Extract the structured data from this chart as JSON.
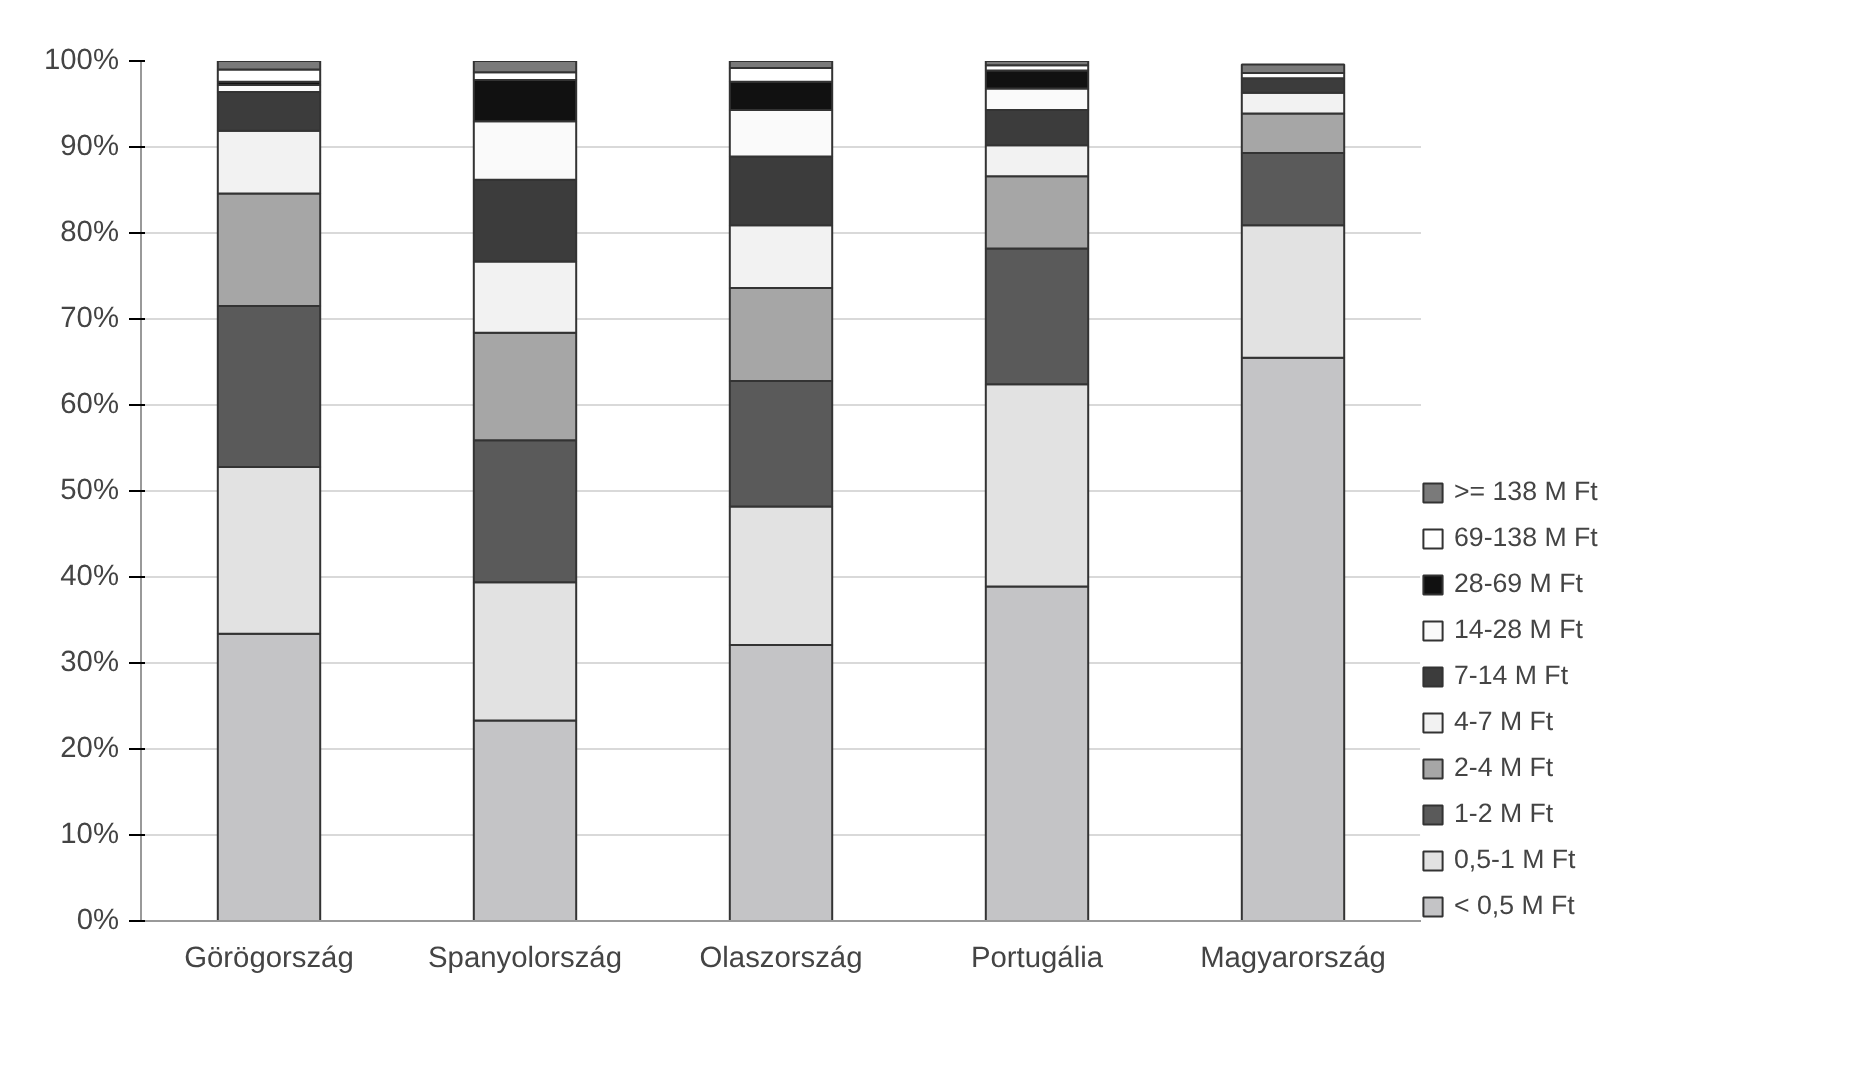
{
  "chart_data": {
    "type": "bar",
    "stacked": true,
    "categories": [
      "Görögország",
      "Spanyolország",
      "Olaszország",
      "Portugália",
      "Magyarország"
    ],
    "ylim": [
      0,
      100
    ],
    "yticks": [
      {
        "value": 0,
        "label": "0%"
      },
      {
        "value": 10,
        "label": "10%"
      },
      {
        "value": 20,
        "label": "20%"
      },
      {
        "value": 30,
        "label": "30%"
      },
      {
        "value": 40,
        "label": "40%"
      },
      {
        "value": 50,
        "label": "50%"
      },
      {
        "value": 60,
        "label": "60%"
      },
      {
        "value": 70,
        "label": "70%"
      },
      {
        "value": 80,
        "label": "80%"
      },
      {
        "value": 90,
        "label": "90%"
      },
      {
        "value": 100,
        "label": "100%"
      }
    ],
    "grid": "y",
    "legend": "right",
    "series": [
      {
        "name": "< 0,5 M Ft",
        "color": "#c4c4c6",
        "values": [
          33.4,
          23.3,
          32.1,
          38.9,
          65.5
        ]
      },
      {
        "name": "0,5-1 M Ft",
        "color": "#e2e2e2",
        "values": [
          19.4,
          16.1,
          16.1,
          23.5,
          15.4
        ]
      },
      {
        "name": "1-2 M Ft",
        "color": "#5a5a5a",
        "values": [
          18.7,
          16.5,
          14.6,
          15.8,
          8.4
        ]
      },
      {
        "name": "2-4 M Ft",
        "color": "#a6a6a6",
        "values": [
          13.1,
          12.5,
          10.8,
          8.4,
          4.6
        ]
      },
      {
        "name": "4-7 M Ft",
        "color": "#f2f2f2",
        "values": [
          7.3,
          8.3,
          7.3,
          3.6,
          2.4
        ]
      },
      {
        "name": "7-14 M Ft",
        "color": "#3c3c3c",
        "values": [
          4.5,
          9.5,
          8.0,
          4.1,
          1.7
        ]
      },
      {
        "name": "14-28 M Ft",
        "color": "#fafafa",
        "values": [
          0.8,
          6.8,
          5.4,
          2.5,
          0.6
        ]
      },
      {
        "name": "28-69 M Ft",
        "color": "#111111",
        "values": [
          0.4,
          4.8,
          3.3,
          2.1,
          null
        ]
      },
      {
        "name": "69-138 M Ft",
        "color": "#ffffff",
        "values": [
          1.4,
          0.9,
          1.6,
          0.6,
          null
        ]
      },
      {
        "name": ">= 138 M Ft",
        "color": "#7a7a7a",
        "values": [
          1.0,
          1.3,
          0.8,
          0.5,
          1.0
        ]
      }
    ]
  }
}
